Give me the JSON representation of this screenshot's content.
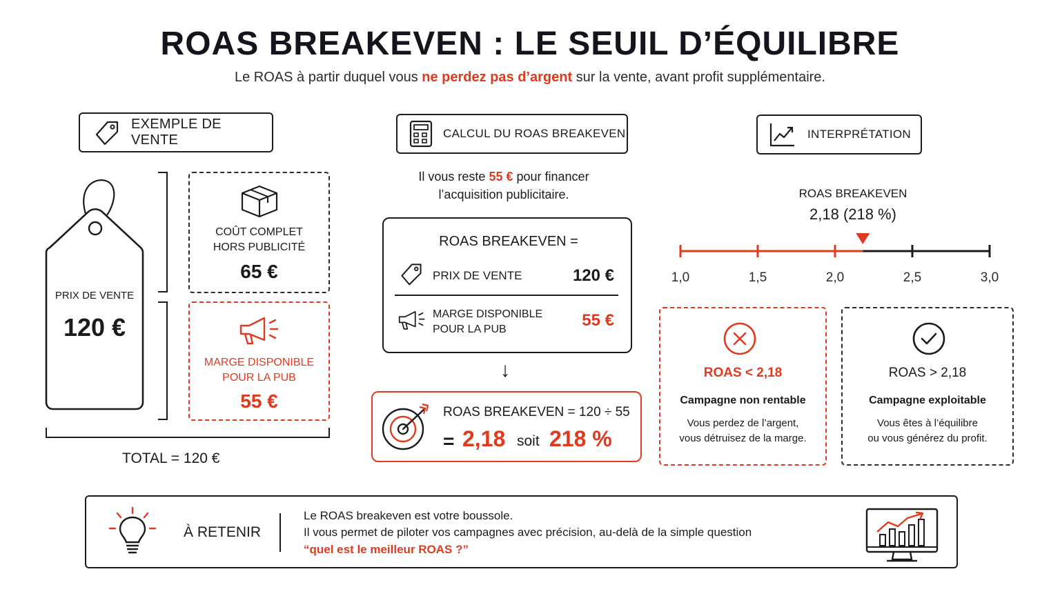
{
  "title": "ROAS BREAKEVEN : LE SEUIL D’ÉQUILIBRE",
  "subtitle": {
    "before": "Le ROAS à partir duquel vous ",
    "highlight": "ne perdez pas d’argent",
    "after": " sur la vente, avant profit supplémentaire."
  },
  "colors": {
    "accent": "#e03a1e",
    "dark": "#1a1a1f"
  },
  "sale_example": {
    "header": "EXEMPLE DE VENTE",
    "header_icon": "price-tag-icon",
    "tag_label": "PRIX DE VENTE",
    "tag_value": "120 €",
    "cost_line1": "COÛT COMPLET",
    "cost_line2": "HORS PUBLICITÉ",
    "cost_value": "65 €",
    "cost_icon": "box-icon",
    "margin_line1": "MARGE DISPONIBLE",
    "margin_line2": "POUR LA PUB",
    "margin_value": "55 €",
    "margin_icon": "megaphone-icon",
    "total": "TOTAL = 120 €"
  },
  "calculation": {
    "header": "CALCUL DU ROAS BREAKEVEN",
    "header_icon": "calculator-icon",
    "intro_before": "Il vous reste ",
    "intro_highlight": "55 €",
    "intro_after": " pour financer",
    "intro_line2": "l’acquisition publicitaire.",
    "formula_title": "ROAS BREAKEVEN =",
    "price_label": "PRIX DE VENTE",
    "price_value": "120 €",
    "margin_line1": "MARGE DISPONIBLE",
    "margin_line2": "POUR LA PUB",
    "margin_value": "55 €",
    "arrow": "↓",
    "result_line": "ROAS BREAKEVEN = 120 ÷ 55",
    "result_equals": "=",
    "result_value": "2,18",
    "result_soit": "soit",
    "result_percent": "218 %",
    "result_icon": "target-icon"
  },
  "interpretation": {
    "header": "INTERPRÉTATION",
    "header_icon": "trend-chart-icon",
    "marker_label": "ROAS BREAKEVEN",
    "marker_value": "2,18 (218 %)",
    "scale": {
      "min": 1.0,
      "max": 3.0,
      "breakeven": 2.18,
      "ticks": [
        1.0,
        1.5,
        2.0,
        2.5,
        3.0
      ],
      "tick_labels": [
        "1,0",
        "1,5",
        "2,0",
        "2,5",
        "3,0"
      ]
    },
    "bad": {
      "icon": "cross-circle-icon",
      "title": "ROAS < 2,18",
      "subtitle": "Campagne non rentable",
      "line1": "Vous perdez de l’argent,",
      "line2": "vous détruisez de la marge."
    },
    "good": {
      "icon": "check-circle-icon",
      "title": "ROAS > 2,18",
      "subtitle": "Campagne exploitable",
      "line1": "Vous êtes à l’équilibre",
      "line2": "ou vous générez du profit."
    }
  },
  "takeaway": {
    "icon": "lightbulb-icon",
    "label": "À RETENIR",
    "line1": "Le ROAS breakeven est votre boussole.",
    "line2": "Il vous permet de piloter vos campagnes avec précision, au-delà de la simple question",
    "quote": "“quel est le meilleur ROAS ?”",
    "right_icon": "monitor-chart-icon"
  }
}
